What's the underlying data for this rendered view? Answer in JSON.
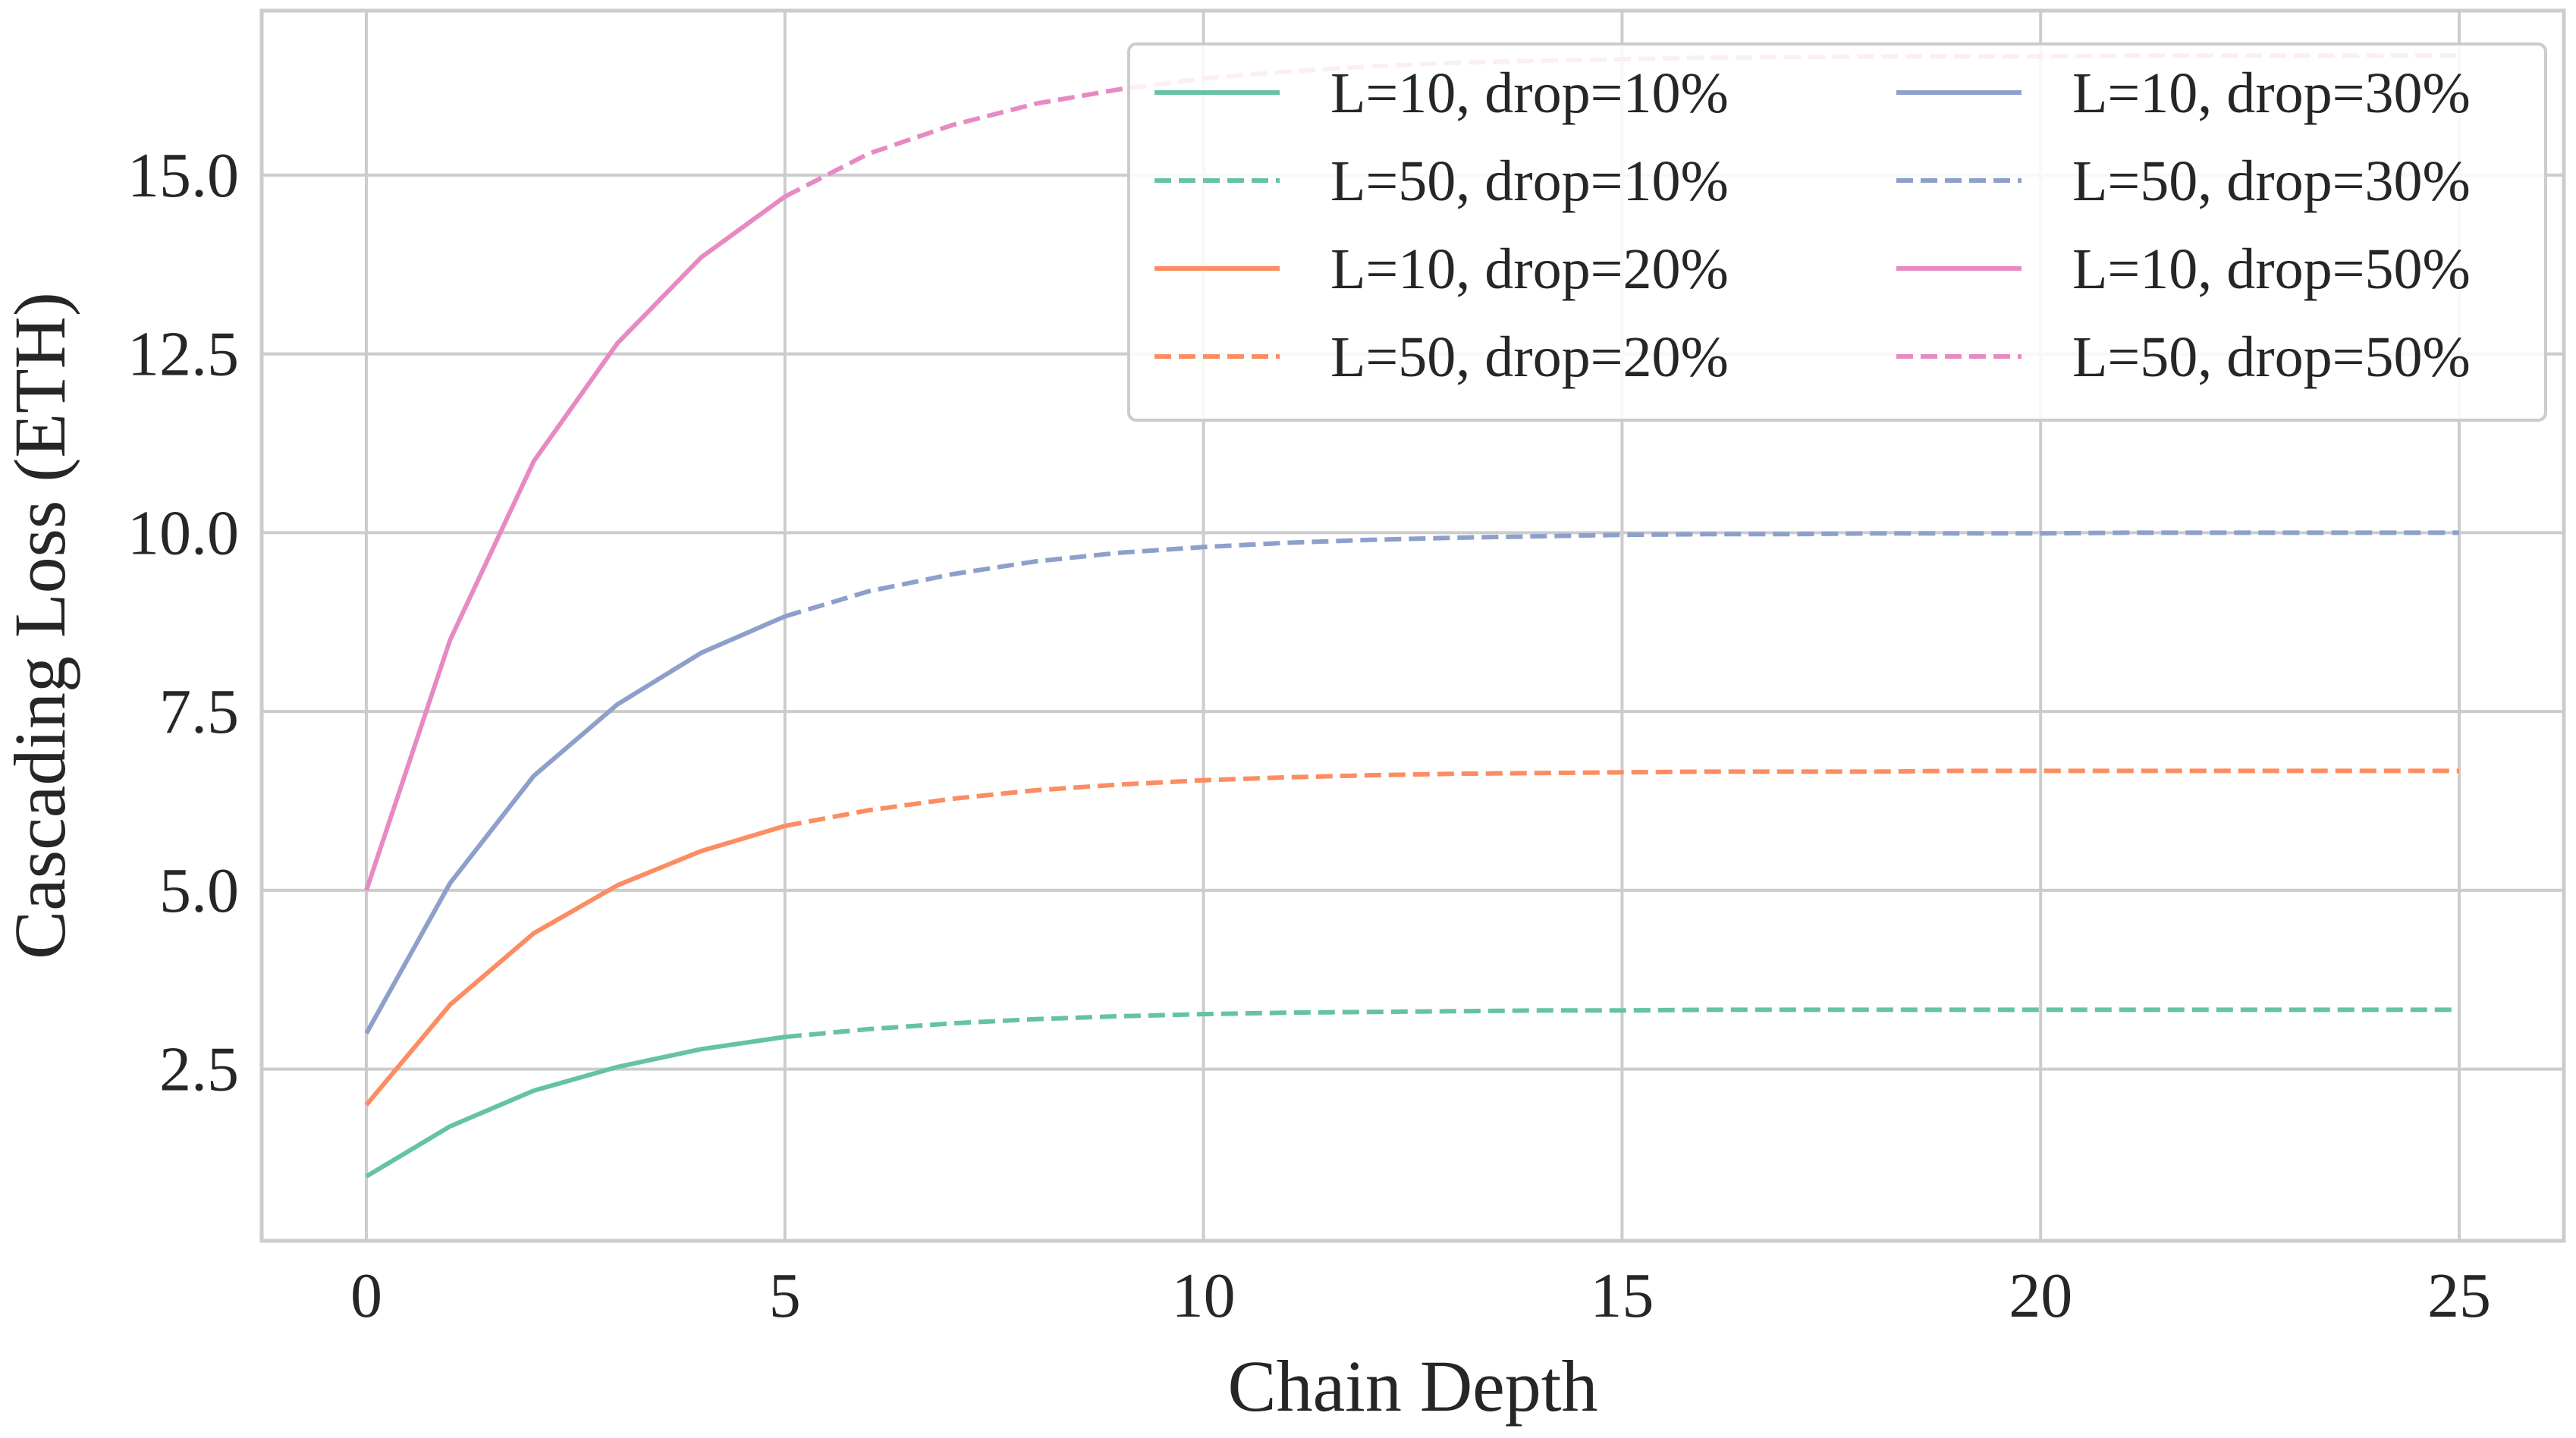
{
  "chart_data": {
    "type": "line",
    "title": "",
    "xlabel": "Chain Depth",
    "ylabel": "Cascading Loss (ETH)",
    "xlim": [
      -1.25,
      26.25
    ],
    "ylim": [
      0.1,
      17.3
    ],
    "xticks": [
      0,
      5,
      10,
      15,
      20,
      25
    ],
    "xtick_labels": [
      "0",
      "5",
      "10",
      "15",
      "20",
      "25"
    ],
    "yticks": [
      2.5,
      5.0,
      7.5,
      10.0,
      12.5,
      15.0
    ],
    "ytick_labels": [
      "2.5",
      "5.0",
      "7.5",
      "10.0",
      "12.5",
      "15.0"
    ],
    "grid": true,
    "legend_position": "top-right",
    "series": [
      {
        "name": "L=10, drop=10%",
        "color": "#66c2a5",
        "style": "solid",
        "x": [
          0,
          1,
          2,
          3,
          4,
          5
        ],
        "values": [
          1.0,
          1.7,
          2.2,
          2.53,
          2.78,
          2.95
        ]
      },
      {
        "name": "L=50, drop=10%",
        "color": "#66c2a5",
        "style": "dashed",
        "x": [
          5,
          6,
          7,
          8,
          9,
          10,
          11,
          12,
          13,
          14,
          15,
          16,
          17,
          18,
          19,
          20,
          21,
          22,
          23,
          24,
          25
        ],
        "values": [
          2.95,
          3.06,
          3.14,
          3.2,
          3.24,
          3.27,
          3.29,
          3.3,
          3.31,
          3.32,
          3.32,
          3.33,
          3.33,
          3.33,
          3.33,
          3.33,
          3.33,
          3.33,
          3.33,
          3.33,
          3.33
        ]
      },
      {
        "name": "L=10, drop=20%",
        "color": "#fc8d62",
        "style": "solid",
        "x": [
          0,
          1,
          2,
          3,
          4,
          5
        ],
        "values": [
          2.0,
          3.4,
          4.4,
          5.07,
          5.55,
          5.9
        ]
      },
      {
        "name": "L=50, drop=20%",
        "color": "#fc8d62",
        "style": "dashed",
        "x": [
          5,
          6,
          7,
          8,
          9,
          10,
          11,
          12,
          13,
          14,
          15,
          16,
          17,
          18,
          19,
          20,
          21,
          22,
          23,
          24,
          25
        ],
        "values": [
          5.9,
          6.12,
          6.28,
          6.4,
          6.48,
          6.54,
          6.58,
          6.61,
          6.63,
          6.64,
          6.65,
          6.66,
          6.66,
          6.66,
          6.67,
          6.67,
          6.67,
          6.67,
          6.67,
          6.67,
          6.67
        ]
      },
      {
        "name": "L=10, drop=30%",
        "color": "#8da0cb",
        "style": "solid",
        "x": [
          0,
          1,
          2,
          3,
          4,
          5
        ],
        "values": [
          3.0,
          5.1,
          6.6,
          7.6,
          8.32,
          8.83
        ]
      },
      {
        "name": "L=50, drop=30%",
        "color": "#8da0cb",
        "style": "dashed",
        "x": [
          5,
          6,
          7,
          8,
          9,
          10,
          11,
          12,
          13,
          14,
          15,
          16,
          17,
          18,
          19,
          20,
          21,
          22,
          23,
          24,
          25
        ],
        "values": [
          8.83,
          9.18,
          9.42,
          9.6,
          9.72,
          9.8,
          9.86,
          9.9,
          9.93,
          9.95,
          9.97,
          9.98,
          9.98,
          9.99,
          9.99,
          9.99,
          10.0,
          10.0,
          10.0,
          10.0,
          10.0
        ]
      },
      {
        "name": "L=10, drop=50%",
        "color": "#e78ac3",
        "style": "solid",
        "x": [
          0,
          1,
          2,
          3,
          4,
          5
        ],
        "values": [
          5.0,
          8.5,
          11.0,
          12.65,
          13.85,
          14.7
        ]
      },
      {
        "name": "L=50, drop=50%",
        "color": "#e78ac3",
        "style": "dashed",
        "x": [
          5,
          6,
          7,
          8,
          9,
          10,
          11,
          12,
          13,
          14,
          15,
          16,
          17,
          18,
          19,
          20,
          21,
          22,
          23,
          24,
          25
        ],
        "values": [
          14.7,
          15.3,
          15.7,
          16.0,
          16.2,
          16.35,
          16.45,
          16.52,
          16.57,
          16.6,
          16.62,
          16.64,
          16.65,
          16.66,
          16.66,
          16.66,
          16.67,
          16.67,
          16.67,
          16.67,
          16.67
        ]
      }
    ]
  }
}
